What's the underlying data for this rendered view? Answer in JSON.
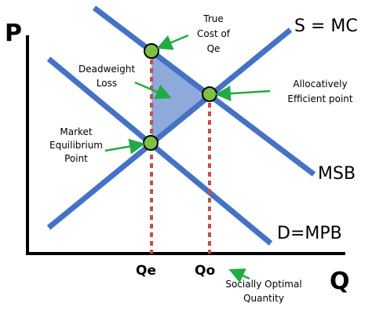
{
  "axes": {
    "y_label": "P",
    "x_label": "Q"
  },
  "curves": {
    "supply_label": "S = MC",
    "msb_label": "MSB",
    "demand_label": "D=MPB",
    "line_color": "#4472c4"
  },
  "quantities": {
    "qe_label": "Qe",
    "qo_label": "Qo"
  },
  "annotations": {
    "true_cost": [
      "True",
      "Cost of",
      "Qe"
    ],
    "deadweight_loss": [
      "Deadweight",
      "Loss"
    ],
    "allocative": [
      "Allocatively",
      "Efficient point"
    ],
    "market_equilibrium": [
      "Market",
      "Equilibrium",
      "Point"
    ],
    "socially_optimal": [
      "Socially Optimal",
      "Quantity"
    ]
  },
  "colors": {
    "point_fill": "#7dc142",
    "dwl_fill": "#8eaadb",
    "arrow": "#22aa44",
    "dashed": "#c0504d"
  }
}
